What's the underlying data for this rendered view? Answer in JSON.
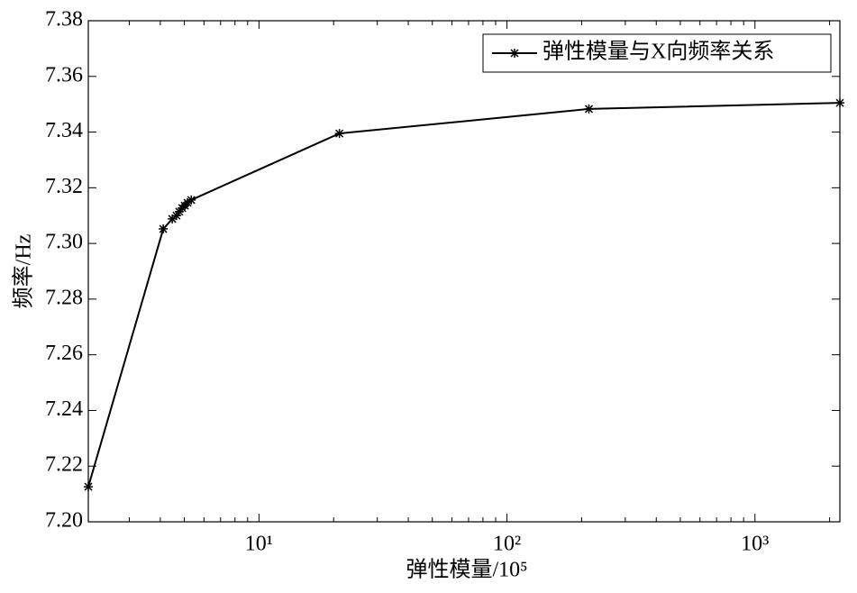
{
  "chart_data": {
    "type": "line",
    "xlabel": "弹性模量/10⁵",
    "ylabel": "频率/Hz",
    "x_scale": "log",
    "xlim": [
      2.05,
      2200
    ],
    "ylim": [
      7.2,
      7.38
    ],
    "xticks": [
      {
        "value": 10,
        "label": "10¹"
      },
      {
        "value": 100,
        "label": "10²"
      },
      {
        "value": 1000,
        "label": "10³"
      }
    ],
    "xminorticks": [
      3,
      4,
      5,
      6,
      7,
      8,
      9,
      20,
      30,
      40,
      50,
      60,
      70,
      80,
      90,
      200,
      300,
      400,
      500,
      600,
      700,
      800,
      900,
      2000
    ],
    "yticks": [
      {
        "value": 7.2,
        "label": "7.20"
      },
      {
        "value": 7.22,
        "label": "7.22"
      },
      {
        "value": 7.24,
        "label": "7.24"
      },
      {
        "value": 7.26,
        "label": "7.26"
      },
      {
        "value": 7.28,
        "label": "7.28"
      },
      {
        "value": 7.3,
        "label": "7.30"
      },
      {
        "value": 7.32,
        "label": "7.32"
      },
      {
        "value": 7.34,
        "label": "7.34"
      },
      {
        "value": 7.36,
        "label": "7.36"
      },
      {
        "value": 7.38,
        "label": "7.38"
      }
    ],
    "grid": false,
    "legend_position": "upper right",
    "x": [
      2.05,
      4.11,
      4.47,
      4.65,
      4.77,
      4.9,
      5.02,
      5.15,
      5.33,
      21.1,
      214,
      2200
    ],
    "series": [
      {
        "name": "弹性模量与X向频率关系",
        "color": "#000000",
        "marker": "asterisk",
        "values": [
          7.2126,
          7.3052,
          7.3088,
          7.31,
          7.3114,
          7.3127,
          7.3136,
          7.3146,
          7.3156,
          7.3395,
          7.3483,
          7.3505
        ]
      }
    ]
  }
}
